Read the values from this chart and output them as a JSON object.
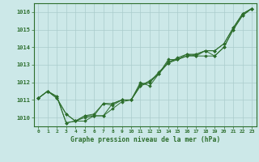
{
  "title": "Graphe pression niveau de la mer (hPa)",
  "background_color": "#cce8e8",
  "grid_color": "#aacccc",
  "line_color": "#2d6e2d",
  "xlim": [
    -0.5,
    23.5
  ],
  "ylim": [
    1009.5,
    1016.5
  ],
  "yticks": [
    1010,
    1011,
    1012,
    1013,
    1014,
    1015,
    1016
  ],
  "xticks": [
    0,
    1,
    2,
    3,
    4,
    5,
    6,
    7,
    8,
    9,
    10,
    11,
    12,
    13,
    14,
    15,
    16,
    17,
    18,
    19,
    20,
    21,
    22,
    23
  ],
  "series": [
    [
      1011.1,
      1011.5,
      1011.2,
      1009.7,
      1009.8,
      1010.0,
      1010.1,
      1010.1,
      1010.5,
      1010.9,
      1011.0,
      1011.8,
      1012.1,
      1012.5,
      1013.2,
      1013.3,
      1013.6,
      1013.6,
      1013.8,
      1013.8,
      1014.2,
      1015.1,
      1015.9,
      1016.2
    ],
    [
      1011.1,
      1011.5,
      1011.1,
      1010.2,
      1009.8,
      1009.8,
      1010.1,
      1010.8,
      1010.7,
      1011.0,
      1011.0,
      1011.9,
      1012.0,
      1012.6,
      1013.1,
      1013.4,
      1013.6,
      1013.5,
      1013.5,
      1013.5,
      1014.0,
      1015.0,
      1015.8,
      1016.2
    ],
    [
      1011.1,
      1011.5,
      1011.2,
      1009.7,
      1009.8,
      1010.1,
      1010.1,
      1010.1,
      1010.8,
      1011.0,
      1011.0,
      1012.0,
      1011.8,
      1012.5,
      1013.3,
      1013.3,
      1013.5,
      1013.6,
      1013.8,
      1013.8,
      1014.2,
      1015.1,
      1015.9,
      1016.2
    ],
    [
      1011.1,
      1011.5,
      1011.1,
      1010.2,
      1009.8,
      1010.1,
      1010.2,
      1010.8,
      1010.8,
      1011.0,
      1011.0,
      1011.8,
      1012.0,
      1012.5,
      1013.1,
      1013.3,
      1013.5,
      1013.5,
      1013.8,
      1013.5,
      1014.0,
      1015.0,
      1015.8,
      1016.2
    ]
  ]
}
